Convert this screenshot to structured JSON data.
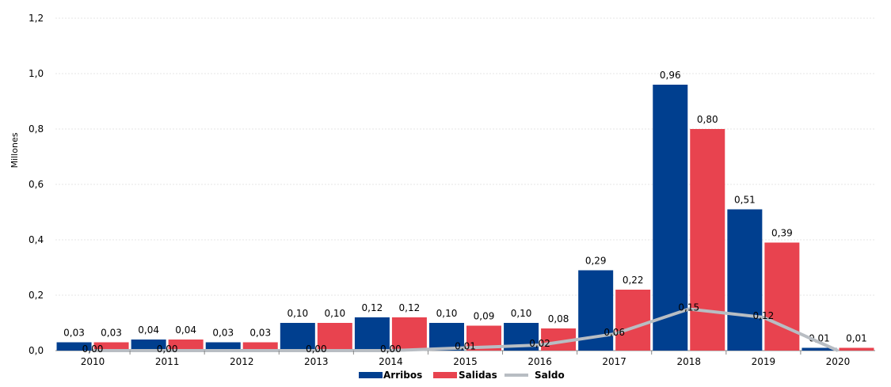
{
  "chart_data": {
    "type": "bar",
    "categories": [
      "2010",
      "2011",
      "2012",
      "2013",
      "2014",
      "2015",
      "2016",
      "2017",
      "2018",
      "2019",
      "2020"
    ],
    "series": [
      {
        "name": "Arribos",
        "kind": "bar",
        "color": "#003f8f",
        "values": [
          0.03,
          0.04,
          0.03,
          0.1,
          0.12,
          0.1,
          0.1,
          0.29,
          0.96,
          0.51,
          0.01
        ],
        "labels": [
          "0,03",
          "0,04",
          "0,03",
          "0,10",
          "0,12",
          "0,10",
          "0,10",
          "0,29",
          "0,96",
          "0,51",
          "0,01"
        ]
      },
      {
        "name": "Salidas",
        "kind": "bar",
        "color": "#e8434f",
        "values": [
          0.03,
          0.04,
          0.03,
          0.1,
          0.12,
          0.09,
          0.08,
          0.22,
          0.8,
          0.39,
          0.01
        ],
        "labels": [
          "0,03",
          "0,04",
          "0,03",
          "0,10",
          "0,12",
          "0,09",
          "0,08",
          "0,22",
          "0,80",
          "0,39",
          "0,01"
        ]
      },
      {
        "name": "Saldo",
        "kind": "line",
        "color": "#b8bdc3",
        "values": [
          0.0,
          0.0,
          0.0,
          0.0,
          0.0,
          0.01,
          0.02,
          0.06,
          0.15,
          0.12,
          0.0
        ],
        "labels": [
          "0,00",
          "0,00",
          "",
          "0,00",
          "0,00",
          "0,01",
          "0,02",
          "0,06",
          "0,15",
          "0,12",
          ""
        ]
      }
    ],
    "ylabel": "Millones",
    "ylim": [
      0,
      1.2
    ],
    "yticks": [
      0,
      0.2,
      0.4,
      0.6,
      0.8,
      1.0,
      1.2
    ],
    "ytick_labels": [
      "0,0",
      "0,2",
      "0,4",
      "0,6",
      "0,8",
      "1,0",
      "1,2"
    ],
    "grid": true,
    "legend_position": "bottom-center"
  }
}
